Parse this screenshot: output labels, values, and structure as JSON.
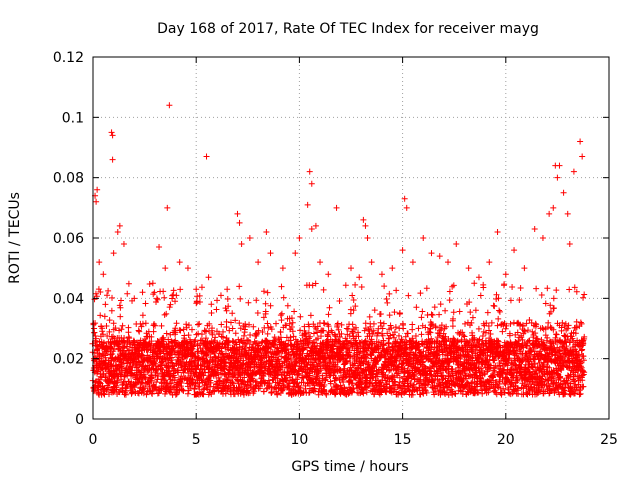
{
  "chart_data": {
    "type": "scatter",
    "title": "Day 168 of 2017, Rate Of TEC Index for receiver mayg",
    "xlabel": "GPS time / hours",
    "ylabel": "ROTI / TECUs",
    "xlim": [
      0,
      25
    ],
    "ylim": [
      0,
      0.12
    ],
    "x_ticks": [
      0,
      5,
      10,
      15,
      20,
      25
    ],
    "y_ticks": [
      0,
      0.02,
      0.04,
      0.06,
      0.08,
      0.1,
      0.12
    ],
    "x_tick_labels": [
      "0",
      "5",
      "10",
      "15",
      "20",
      "25"
    ],
    "y_tick_labels": [
      "0",
      "0.02",
      "0.04",
      "0.06",
      "0.08",
      "0.1",
      "0.12"
    ],
    "grid": true,
    "marker": "plus",
    "color": "#ff0000",
    "data_range_x": [
      0,
      23.8
    ],
    "series": [
      {
        "points": [
          [
            0.05,
            0.03
          ],
          [
            0.1,
            0.074
          ],
          [
            0.15,
            0.072
          ],
          [
            0.2,
            0.076
          ],
          [
            0.3,
            0.052
          ],
          [
            0.5,
            0.048
          ],
          [
            0.9,
            0.095
          ],
          [
            0.95,
            0.094
          ],
          [
            0.95,
            0.086
          ],
          [
            1.0,
            0.055
          ],
          [
            1.2,
            0.062
          ],
          [
            1.3,
            0.064
          ],
          [
            1.5,
            0.058
          ],
          [
            2.0,
            0.04
          ],
          [
            2.4,
            0.042
          ],
          [
            2.9,
            0.045
          ],
          [
            3.2,
            0.057
          ],
          [
            3.5,
            0.05
          ],
          [
            3.6,
            0.07
          ],
          [
            3.7,
            0.104
          ],
          [
            4.2,
            0.052
          ],
          [
            4.6,
            0.05
          ],
          [
            5.0,
            0.043
          ],
          [
            5.5,
            0.087
          ],
          [
            5.6,
            0.047
          ],
          [
            6.2,
            0.041
          ],
          [
            6.5,
            0.043
          ],
          [
            7.0,
            0.068
          ],
          [
            7.1,
            0.065
          ],
          [
            7.2,
            0.058
          ],
          [
            7.6,
            0.06
          ],
          [
            8.0,
            0.052
          ],
          [
            8.4,
            0.062
          ],
          [
            8.6,
            0.055
          ],
          [
            9.2,
            0.05
          ],
          [
            9.8,
            0.055
          ],
          [
            10.0,
            0.06
          ],
          [
            10.4,
            0.071
          ],
          [
            10.5,
            0.082
          ],
          [
            10.6,
            0.078
          ],
          [
            10.6,
            0.063
          ],
          [
            10.8,
            0.064
          ],
          [
            11.0,
            0.052
          ],
          [
            11.4,
            0.048
          ],
          [
            11.8,
            0.07
          ],
          [
            12.5,
            0.05
          ],
          [
            12.9,
            0.047
          ],
          [
            13.1,
            0.066
          ],
          [
            13.2,
            0.064
          ],
          [
            13.3,
            0.06
          ],
          [
            13.5,
            0.052
          ],
          [
            14.0,
            0.048
          ],
          [
            14.5,
            0.05
          ],
          [
            15.0,
            0.056
          ],
          [
            15.1,
            0.073
          ],
          [
            15.2,
            0.07
          ],
          [
            15.5,
            0.052
          ],
          [
            16.0,
            0.06
          ],
          [
            16.4,
            0.055
          ],
          [
            16.8,
            0.054
          ],
          [
            17.2,
            0.052
          ],
          [
            17.6,
            0.058
          ],
          [
            18.2,
            0.05
          ],
          [
            18.7,
            0.047
          ],
          [
            19.2,
            0.052
          ],
          [
            19.6,
            0.062
          ],
          [
            20.0,
            0.048
          ],
          [
            20.4,
            0.056
          ],
          [
            20.9,
            0.05
          ],
          [
            21.4,
            0.063
          ],
          [
            21.8,
            0.06
          ],
          [
            22.1,
            0.068
          ],
          [
            22.3,
            0.07
          ],
          [
            22.4,
            0.084
          ],
          [
            22.5,
            0.08
          ],
          [
            22.6,
            0.084
          ],
          [
            22.8,
            0.075
          ],
          [
            23.0,
            0.068
          ],
          [
            23.1,
            0.058
          ],
          [
            23.3,
            0.082
          ],
          [
            23.6,
            0.092
          ],
          [
            23.7,
            0.087
          ]
        ]
      }
    ]
  }
}
